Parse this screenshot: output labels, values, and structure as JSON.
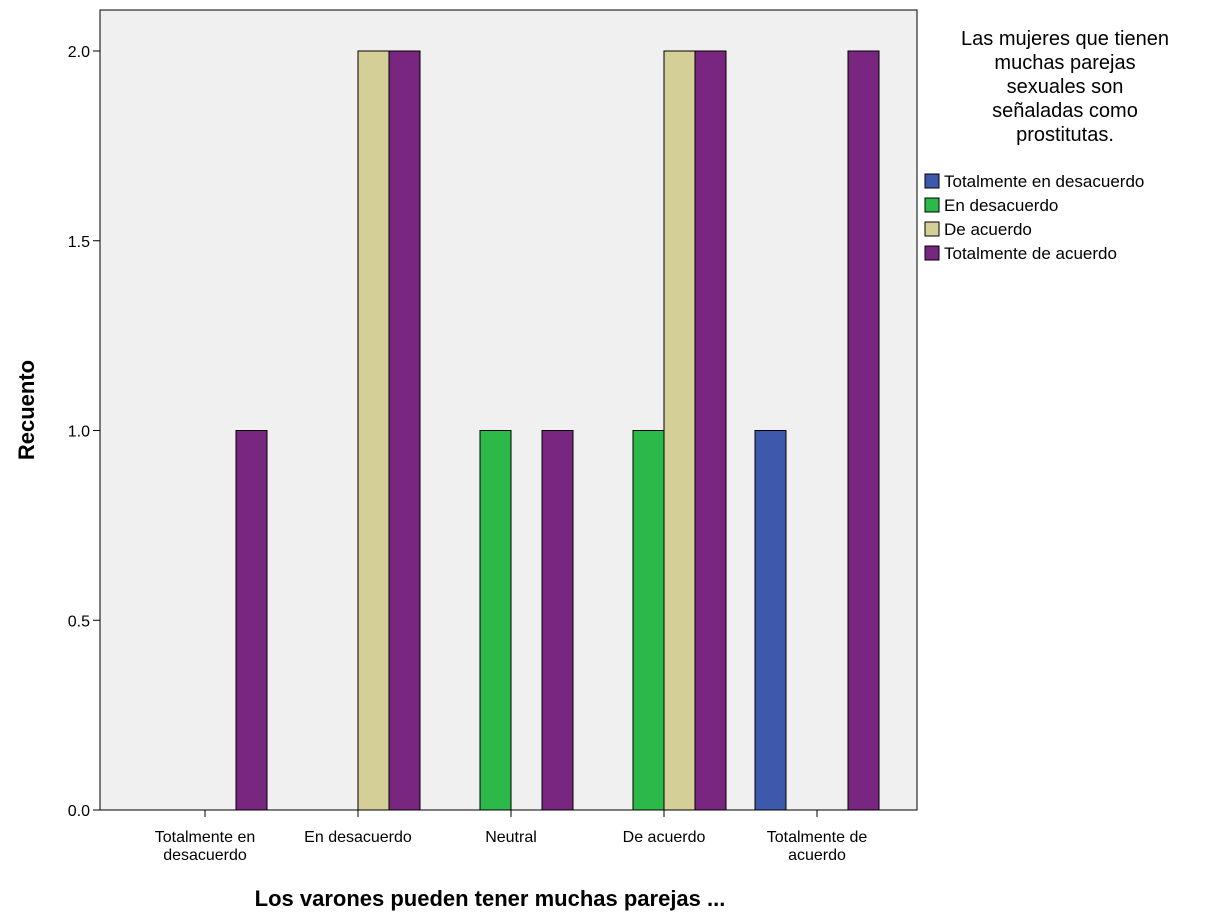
{
  "chart_data": {
    "type": "bar",
    "xlabel": "Los varones pueden tener muchas parejas ...",
    "ylabel": "Recuento",
    "ylim": [
      0,
      2.2
    ],
    "yticks": [
      "0.0",
      "0.5",
      "1.0",
      "1.5",
      "2.0"
    ],
    "ytick_values": [
      0,
      0.5,
      1.0,
      1.5,
      2.0
    ],
    "categories": [
      [
        "Totalmente en",
        "desacuerdo"
      ],
      [
        "En desacuerdo"
      ],
      [
        "Neutral"
      ],
      [
        "De acuerdo"
      ],
      [
        "Totalmente de",
        "acuerdo"
      ]
    ],
    "legend_title": [
      "Las mujeres que tienen",
      "muchas parejas",
      "sexuales son",
      "señaladas como",
      "prostitutas."
    ],
    "legend_position": "right",
    "grid": false,
    "plot_background": "#f0f0f0",
    "series": [
      {
        "name": "Totalmente en desacuerdo",
        "color": "#3e58ac",
        "values": [
          0,
          0,
          0,
          0,
          1
        ]
      },
      {
        "name": "En desacuerdo",
        "color": "#2db84a",
        "values": [
          0,
          0,
          1,
          1,
          0
        ]
      },
      {
        "name": "De acuerdo",
        "color": "#d4cf96",
        "values": [
          0,
          2,
          0,
          2,
          0
        ]
      },
      {
        "name": "Totalmente de acuerdo",
        "color": "#782680",
        "values": [
          1,
          2,
          1,
          2,
          2
        ]
      }
    ]
  }
}
